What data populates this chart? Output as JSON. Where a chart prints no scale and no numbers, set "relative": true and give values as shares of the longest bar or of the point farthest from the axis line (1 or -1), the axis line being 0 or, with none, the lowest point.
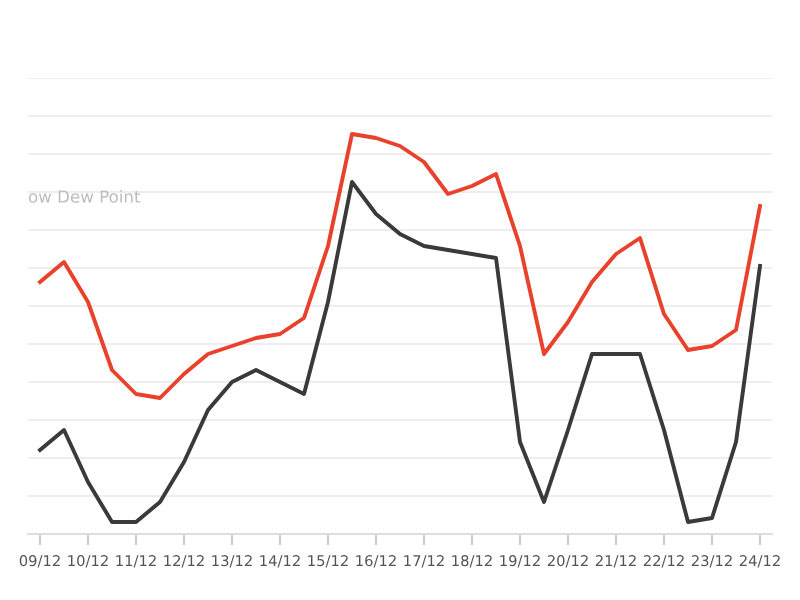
{
  "chart_data": {
    "type": "line",
    "relative": true,
    "grid": "y",
    "line_style": "solid",
    "marker": "none",
    "annotations": [
      "ow Dew Point"
    ],
    "categories": [
      "09/12",
      null,
      "10/12",
      null,
      "11/12",
      null,
      "12/12",
      null,
      "13/12",
      null,
      "14/12",
      null,
      "15/12",
      null,
      "16/12",
      null,
      "17/12",
      null,
      "18/12",
      null,
      "19/12",
      null,
      "20/12",
      null,
      "21/12",
      null,
      "22/12",
      null,
      "23/12",
      null,
      "24/12"
    ],
    "series": [
      {
        "color": "#e8412c",
        "values": [
          0.63,
          0.68,
          0.58,
          0.41,
          0.35,
          0.34,
          0.4,
          0.45,
          0.47,
          0.49,
          0.5,
          0.54,
          0.72,
          1.0,
          0.99,
          0.97,
          0.93,
          0.85,
          0.87,
          0.9,
          0.72,
          0.45,
          0.53,
          0.63,
          0.7,
          0.74,
          0.55,
          0.46,
          0.47,
          0.51,
          0.82
        ]
      },
      {
        "color": "#3a3a3a",
        "values": [
          0.21,
          0.26,
          0.13,
          0.03,
          0.03,
          0.08,
          0.18,
          0.31,
          0.38,
          0.41,
          0.38,
          0.35,
          0.58,
          0.88,
          0.8,
          0.75,
          0.72,
          0.71,
          0.7,
          0.69,
          0.23,
          0.08,
          0.26,
          0.45,
          0.45,
          0.45,
          0.26,
          0.03,
          0.04,
          0.23,
          0.67
        ]
      }
    ]
  }
}
